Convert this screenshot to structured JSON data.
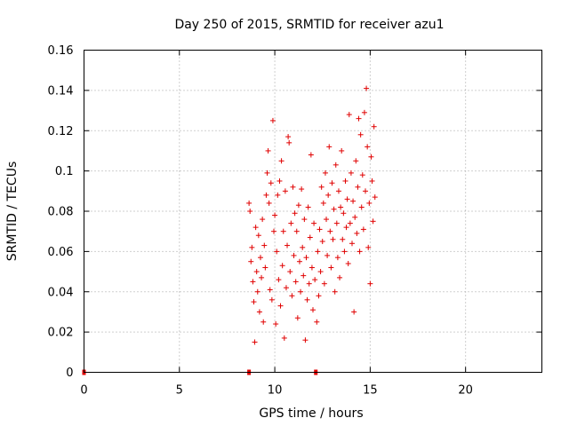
{
  "chart_data": {
    "type": "scatter",
    "title": "Day 250 of 2015, SRMTID for receiver azu1",
    "xlabel": "GPS time / hours",
    "ylabel": "SRMTID / TECUs",
    "xlim": [
      0,
      24
    ],
    "ylim": [
      0,
      0.16
    ],
    "xticks": [
      0,
      5,
      10,
      15,
      20
    ],
    "xtick_labels": [
      "0",
      "5",
      "10",
      "15",
      "20"
    ],
    "yticks": [
      0,
      0.02,
      0.04,
      0.06,
      0.08,
      0.1,
      0.12,
      0.14,
      0.16
    ],
    "ytick_labels": [
      "0",
      "0.02",
      "0.04",
      "0.06",
      "0.08",
      "0.1",
      "0.12",
      "0.14",
      "0.16"
    ],
    "grid": true,
    "marker": "+",
    "color": "#e00000",
    "zero_markers_x": [
      0,
      8.65,
      12.15
    ],
    "series": [
      {
        "name": "SRMTID",
        "x_range": [
          8.6,
          15.3
        ],
        "y_range": [
          0.015,
          0.141
        ],
        "points": [
          [
            8.65,
            0.084
          ],
          [
            8.7,
            0.08
          ],
          [
            8.75,
            0.055
          ],
          [
            8.8,
            0.062
          ],
          [
            8.85,
            0.045
          ],
          [
            8.9,
            0.035
          ],
          [
            8.95,
            0.015
          ],
          [
            9.0,
            0.072
          ],
          [
            9.05,
            0.05
          ],
          [
            9.1,
            0.04
          ],
          [
            9.15,
            0.068
          ],
          [
            9.2,
            0.03
          ],
          [
            9.25,
            0.057
          ],
          [
            9.3,
            0.047
          ],
          [
            9.35,
            0.076
          ],
          [
            9.4,
            0.025
          ],
          [
            9.45,
            0.063
          ],
          [
            9.5,
            0.052
          ],
          [
            9.55,
            0.088
          ],
          [
            9.6,
            0.099
          ],
          [
            9.65,
            0.11
          ],
          [
            9.7,
            0.084
          ],
          [
            9.75,
            0.041
          ],
          [
            9.8,
            0.094
          ],
          [
            9.85,
            0.036
          ],
          [
            9.9,
            0.125
          ],
          [
            9.95,
            0.07
          ],
          [
            10.0,
            0.078
          ],
          [
            10.05,
            0.024
          ],
          [
            10.1,
            0.06
          ],
          [
            10.15,
            0.088
          ],
          [
            10.2,
            0.046
          ],
          [
            10.25,
            0.095
          ],
          [
            10.3,
            0.033
          ],
          [
            10.35,
            0.105
          ],
          [
            10.4,
            0.053
          ],
          [
            10.45,
            0.07
          ],
          [
            10.5,
            0.017
          ],
          [
            10.55,
            0.09
          ],
          [
            10.6,
            0.042
          ],
          [
            10.65,
            0.063
          ],
          [
            10.7,
            0.117
          ],
          [
            10.75,
            0.114
          ],
          [
            10.8,
            0.05
          ],
          [
            10.85,
            0.074
          ],
          [
            10.9,
            0.038
          ],
          [
            10.95,
            0.092
          ],
          [
            11.0,
            0.058
          ],
          [
            11.05,
            0.079
          ],
          [
            11.1,
            0.045
          ],
          [
            11.15,
            0.07
          ],
          [
            11.2,
            0.027
          ],
          [
            11.25,
            0.083
          ],
          [
            11.3,
            0.055
          ],
          [
            11.35,
            0.04
          ],
          [
            11.4,
            0.091
          ],
          [
            11.45,
            0.062
          ],
          [
            11.5,
            0.048
          ],
          [
            11.55,
            0.076
          ],
          [
            11.6,
            0.016
          ],
          [
            11.65,
            0.057
          ],
          [
            11.7,
            0.036
          ],
          [
            11.75,
            0.082
          ],
          [
            11.8,
            0.044
          ],
          [
            11.85,
            0.067
          ],
          [
            11.9,
            0.108
          ],
          [
            11.95,
            0.052
          ],
          [
            12.0,
            0.031
          ],
          [
            12.05,
            0.074
          ],
          [
            12.1,
            0.046
          ],
          [
            12.2,
            0.025
          ],
          [
            12.25,
            0.06
          ],
          [
            12.3,
            0.038
          ],
          [
            12.35,
            0.071
          ],
          [
            12.4,
            0.05
          ],
          [
            12.45,
            0.092
          ],
          [
            12.5,
            0.065
          ],
          [
            12.55,
            0.084
          ],
          [
            12.6,
            0.044
          ],
          [
            12.65,
            0.099
          ],
          [
            12.7,
            0.076
          ],
          [
            12.75,
            0.058
          ],
          [
            12.8,
            0.088
          ],
          [
            12.85,
            0.112
          ],
          [
            12.9,
            0.07
          ],
          [
            12.95,
            0.052
          ],
          [
            13.0,
            0.094
          ],
          [
            13.05,
            0.066
          ],
          [
            13.1,
            0.081
          ],
          [
            13.15,
            0.04
          ],
          [
            13.2,
            0.103
          ],
          [
            13.25,
            0.074
          ],
          [
            13.3,
            0.057
          ],
          [
            13.35,
            0.09
          ],
          [
            13.4,
            0.047
          ],
          [
            13.45,
            0.082
          ],
          [
            13.5,
            0.11
          ],
          [
            13.55,
            0.066
          ],
          [
            13.6,
            0.079
          ],
          [
            13.65,
            0.06
          ],
          [
            13.7,
            0.095
          ],
          [
            13.75,
            0.072
          ],
          [
            13.8,
            0.086
          ],
          [
            13.85,
            0.054
          ],
          [
            13.9,
            0.128
          ],
          [
            13.95,
            0.074
          ],
          [
            14.0,
            0.099
          ],
          [
            14.05,
            0.064
          ],
          [
            14.1,
            0.085
          ],
          [
            14.15,
            0.03
          ],
          [
            14.2,
            0.077
          ],
          [
            14.25,
            0.105
          ],
          [
            14.3,
            0.069
          ],
          [
            14.35,
            0.092
          ],
          [
            14.4,
            0.126
          ],
          [
            14.45,
            0.06
          ],
          [
            14.5,
            0.118
          ],
          [
            14.55,
            0.082
          ],
          [
            14.6,
            0.098
          ],
          [
            14.65,
            0.071
          ],
          [
            14.7,
            0.129
          ],
          [
            14.75,
            0.09
          ],
          [
            14.8,
            0.141
          ],
          [
            14.85,
            0.112
          ],
          [
            14.9,
            0.062
          ],
          [
            14.95,
            0.084
          ],
          [
            15.0,
            0.044
          ],
          [
            15.05,
            0.107
          ],
          [
            15.1,
            0.095
          ],
          [
            15.15,
            0.075
          ],
          [
            15.2,
            0.122
          ],
          [
            15.25,
            0.087
          ]
        ]
      }
    ]
  }
}
